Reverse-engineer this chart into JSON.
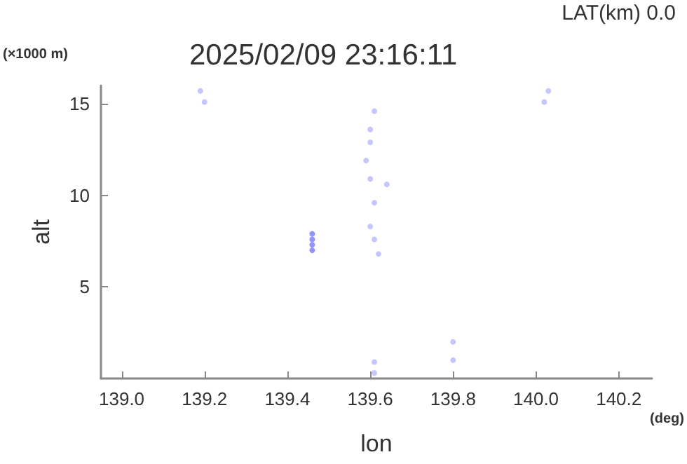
{
  "chart_data": {
    "type": "scatter",
    "title": "2025/02/09 23:16:11",
    "xlabel": "lon",
    "ylabel": "alt",
    "annotations": [
      "LAT(km) 0.0",
      "(×1000 m)",
      "(deg)"
    ],
    "xlim": [
      138.95,
      140.28
    ],
    "xticks": [
      {
        "value": 139.0,
        "label": "139.0"
      },
      {
        "value": 139.2,
        "label": "139.2"
      },
      {
        "value": 139.4,
        "label": "139.4"
      },
      {
        "value": 139.6,
        "label": "139.6"
      },
      {
        "value": 139.8,
        "label": "139.8"
      },
      {
        "value": 140.0,
        "label": "140.0"
      },
      {
        "value": 140.2,
        "label": "140.2"
      }
    ],
    "ylim": [
      0,
      16
    ],
    "yticks": [
      5,
      10,
      15
    ],
    "grid": false,
    "marker": "circle",
    "series": [
      {
        "color": "#7878ff",
        "x": [
          139.46,
          139.46,
          139.46,
          139.46
        ],
        "values": [
          7.9,
          7.6,
          7.3,
          7.0
        ]
      },
      {
        "color": "#b8b8ff",
        "x": [
          139.19,
          139.2,
          139.61,
          139.6,
          139.6,
          139.59,
          139.6,
          139.64,
          139.61,
          139.6,
          139.61,
          139.62,
          139.61,
          139.61,
          139.8,
          139.8,
          140.02,
          140.03
        ],
        "values": [
          15.7,
          15.1,
          14.6,
          13.6,
          12.9,
          11.9,
          10.9,
          10.6,
          9.6,
          8.3,
          7.6,
          6.8,
          0.9,
          0.3,
          2.0,
          1.0,
          15.1,
          15.7
        ]
      }
    ]
  }
}
